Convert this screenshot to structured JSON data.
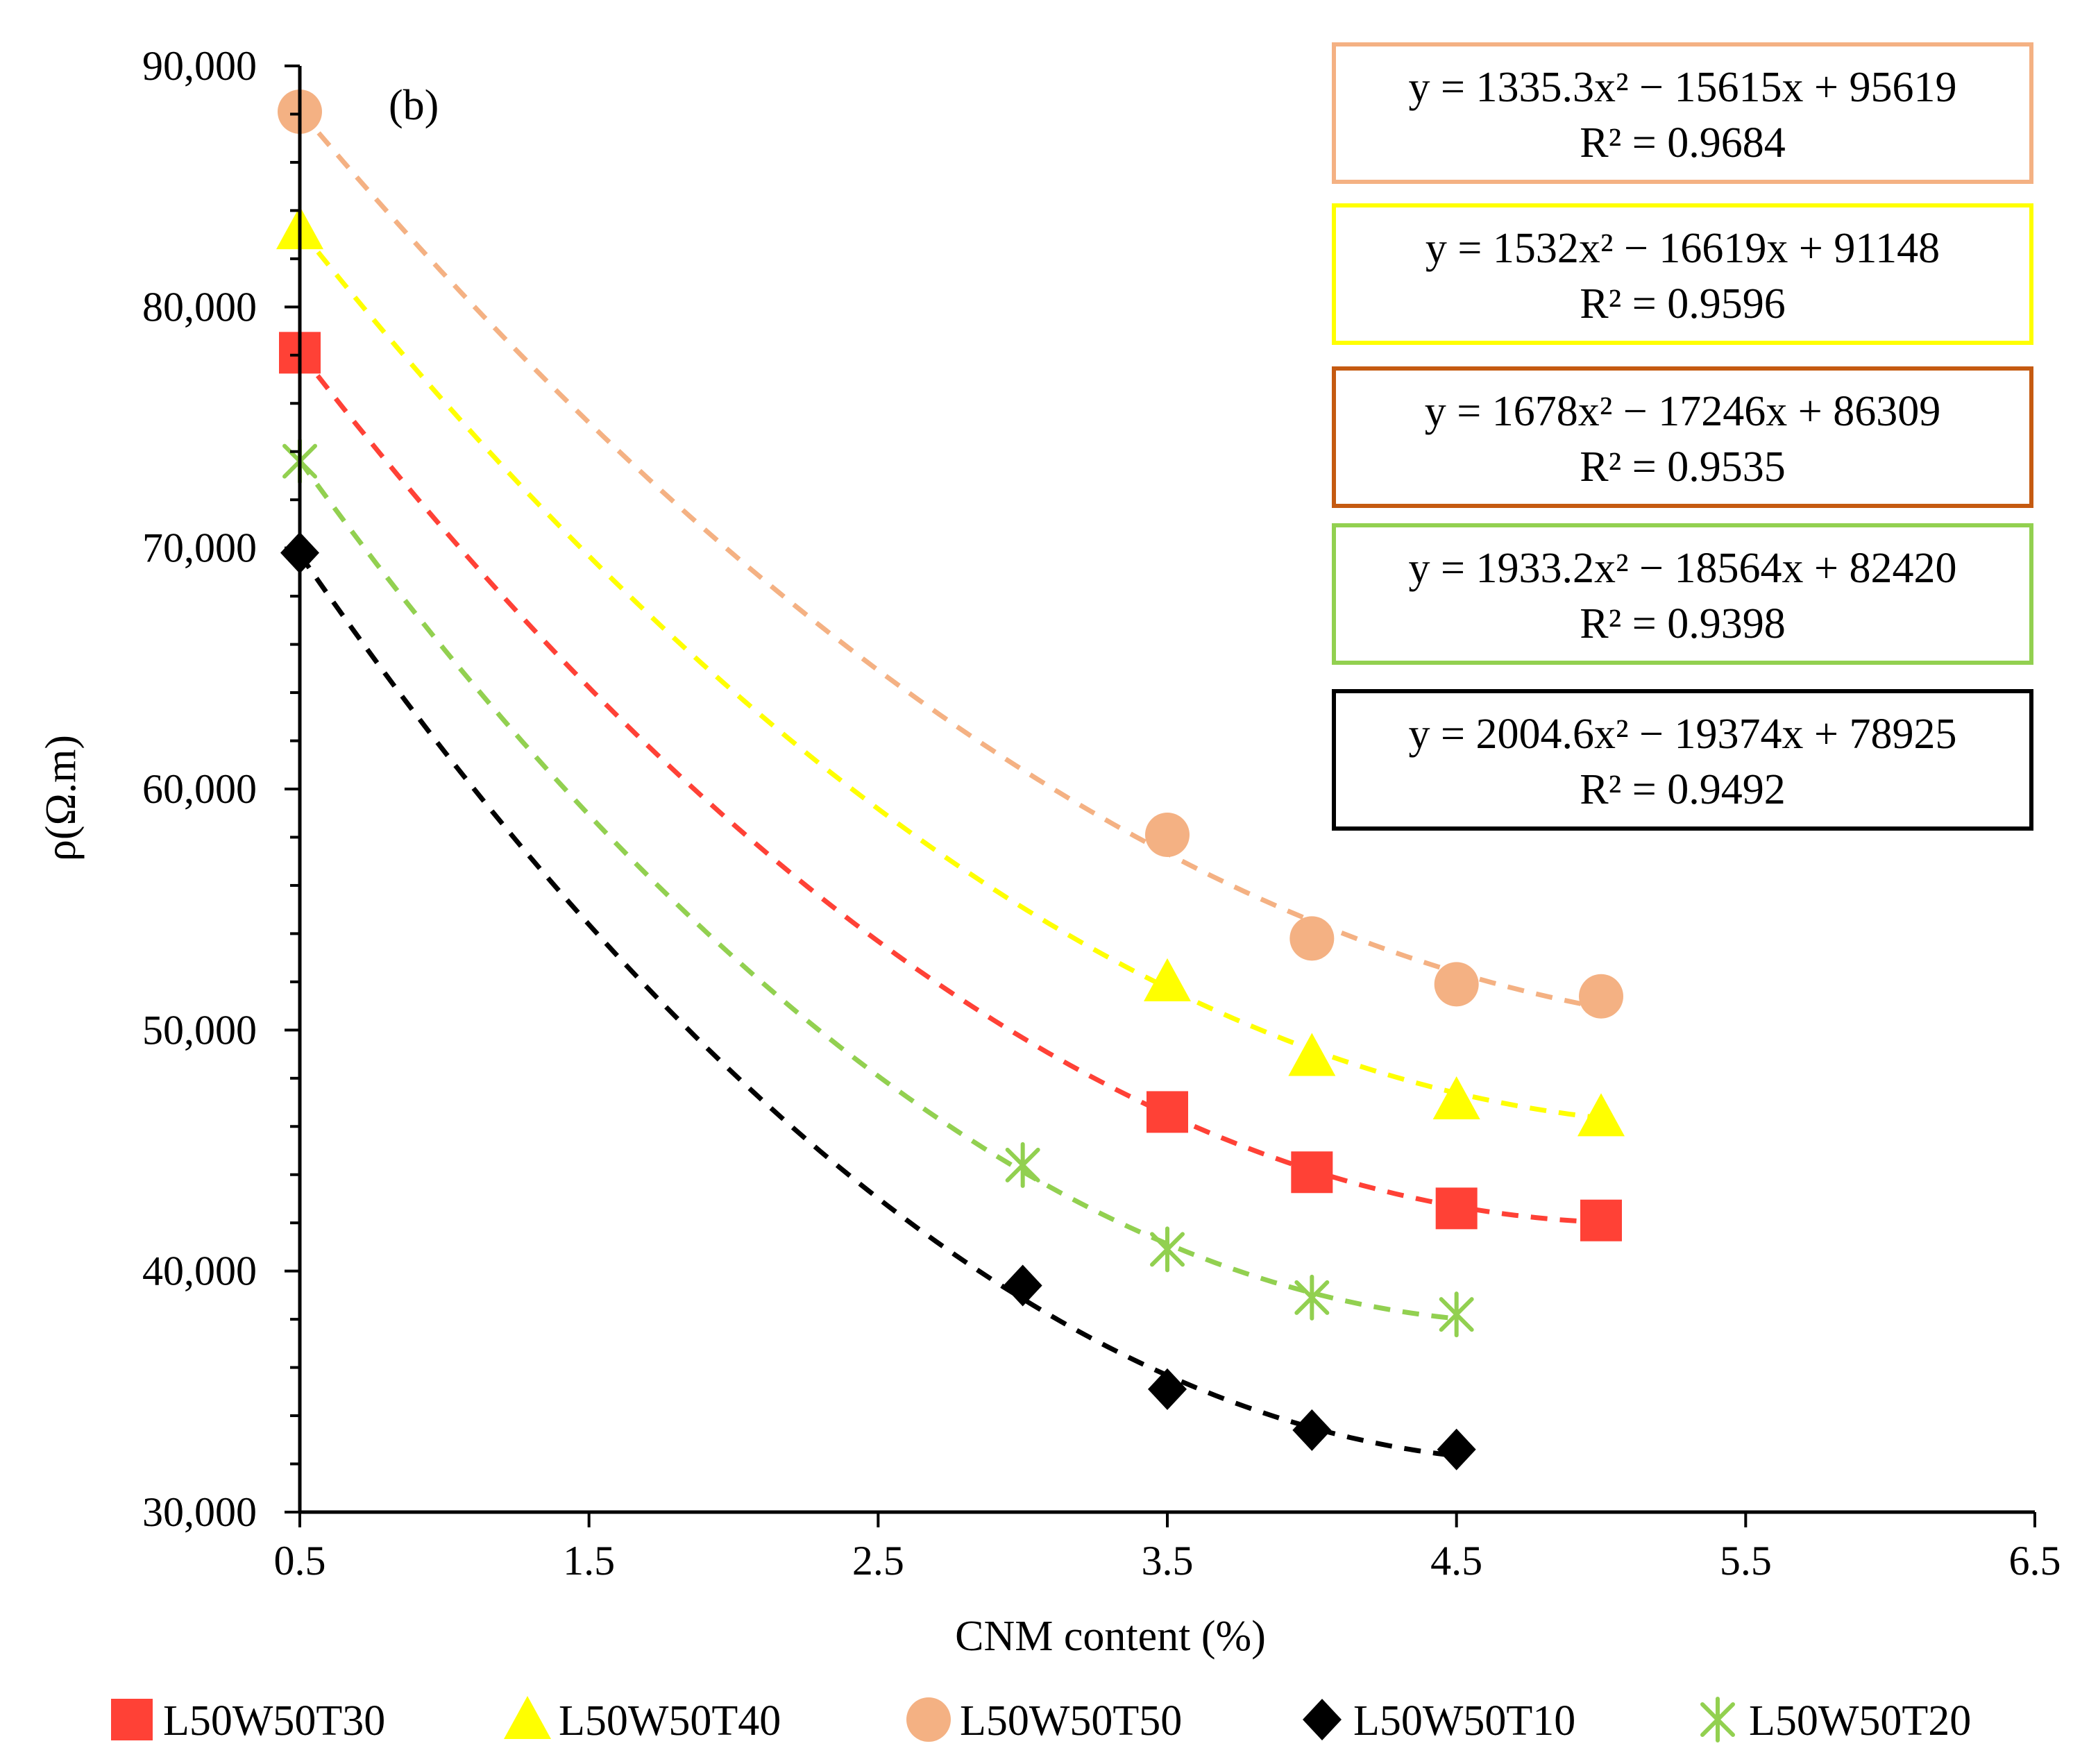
{
  "chart_data": {
    "type": "scatter",
    "panel_label": "(b)",
    "xlabel": "CNM content (%)",
    "ylabel": "ρ(Ω.m)",
    "xlim": [
      0.5,
      6.5
    ],
    "ylim": [
      30000,
      90000
    ],
    "xticks": [
      0.5,
      1.5,
      2.5,
      3.5,
      4.5,
      5.5,
      6.5
    ],
    "xtick_labels": [
      "0.5",
      "1.5",
      "2.5",
      "3.5",
      "4.5",
      "5.5",
      "6.5"
    ],
    "yticks": [
      30000,
      40000,
      50000,
      60000,
      70000,
      80000,
      90000
    ],
    "ytick_labels": [
      "30,000",
      "40,000",
      "50,000",
      "60,000",
      "70,000",
      "80,000",
      "90,000"
    ],
    "grid": false,
    "legend_position": "bottom",
    "series": [
      {
        "name": "L50W50T30",
        "marker": "square",
        "color": "#ff4136",
        "trend_color": "#ff4136",
        "x": [
          0.5,
          3.5,
          4.0,
          4.5,
          5.0
        ],
        "y": [
          78100,
          46600,
          44100,
          42600,
          42100
        ],
        "trendline": {
          "coeffs": [
            1678,
            -17246,
            86309
          ],
          "x_range": [
            0.5,
            5.0
          ],
          "equation": "y = 1678x² − 17246x + 86309",
          "r2": "R² = 0.9535",
          "box_color": "#c55a11"
        }
      },
      {
        "name": "L50W50T40",
        "marker": "triangle",
        "color": "#ffff00",
        "trend_color": "#ffff00",
        "x": [
          0.5,
          3.5,
          4.0,
          4.5,
          5.0
        ],
        "y": [
          83200,
          52000,
          48900,
          47100,
          46400
        ],
        "trendline": {
          "coeffs": [
            1532,
            -16619,
            91148
          ],
          "x_range": [
            0.5,
            5.0
          ],
          "equation": "y = 1532x² − 16619x + 91148",
          "r2": "R² = 0.9596",
          "box_color": "#ffff00"
        }
      },
      {
        "name": "L50W50T50",
        "marker": "circle",
        "color": "#f4b183",
        "trend_color": "#f4b183",
        "x": [
          0.5,
          3.5,
          4.0,
          4.5,
          5.0
        ],
        "y": [
          88100,
          58100,
          53800,
          51900,
          51400
        ],
        "trendline": {
          "coeffs": [
            1335.3,
            -15615,
            95619
          ],
          "x_range": [
            0.5,
            5.0
          ],
          "equation": "y = 1335.3x² − 15615x + 95619",
          "r2": "R² = 0.9684",
          "box_color": "#f4b183"
        }
      },
      {
        "name": "L50W50T10",
        "marker": "diamond",
        "color": "#000000",
        "trend_color": "#000000",
        "x": [
          0.5,
          3.0,
          3.5,
          4.0,
          4.5
        ],
        "y": [
          69800,
          39400,
          35100,
          33400,
          32600
        ],
        "trendline": {
          "coeffs": [
            2004.6,
            -19374,
            78925
          ],
          "x_range": [
            0.5,
            4.5
          ],
          "equation": "y = 2004.6x² − 19374x + 78925",
          "r2": "R² = 0.9492",
          "box_color": "#000000"
        }
      },
      {
        "name": "L50W50T20",
        "marker": "star",
        "color": "#92d050",
        "trend_color": "#92d050",
        "x": [
          0.5,
          3.0,
          3.5,
          4.0,
          4.5
        ],
        "y": [
          73600,
          44400,
          40900,
          38900,
          38200
        ],
        "trendline": {
          "coeffs": [
            1933.2,
            -18564,
            82420
          ],
          "x_range": [
            0.5,
            4.5
          ],
          "equation": "y = 1933.2x² − 18564x + 82420",
          "r2": "R² = 0.9398",
          "box_color": "#92d050"
        }
      }
    ],
    "equation_order": [
      "L50W50T50",
      "L50W50T40",
      "L50W50T30",
      "L50W50T20",
      "L50W50T10"
    ]
  }
}
